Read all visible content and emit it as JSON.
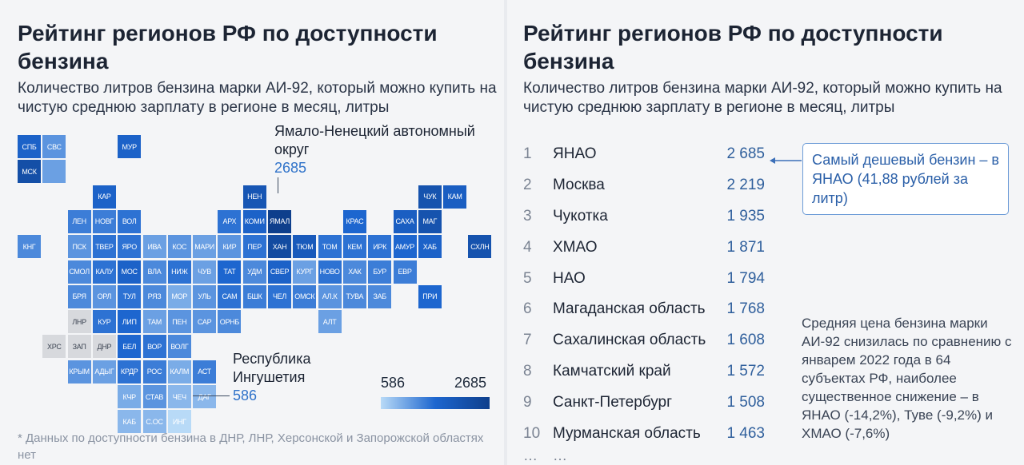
{
  "left": {
    "title": "Рейтинг регионов РФ по доступности бензина",
    "subtitle": "Количество литров бензина марки АИ-92, который можно купить на чистую среднюю зарплату в регионе в месяц, литры",
    "callout_top": {
      "label": "Ямало-Ненецкий автономный округ",
      "value": "2685"
    },
    "callout_bottom": {
      "label": "Республика Ингушетия",
      "value": "586"
    },
    "legend": {
      "min": "586",
      "max": "2685",
      "colors": [
        "#b8daf7",
        "#1d66cf",
        "#0e3f8c"
      ]
    },
    "footnote": "* Данных по доступности бензина в ДНР, ЛНР, Херсонской и Запорожской областях нет"
  },
  "right": {
    "title": "Рейтинг регионов РФ по доступности бензина",
    "subtitle": "Количество литров бензина марки АИ-92, который можно купить на чистую среднюю зарплату в регионе в месяц, литры",
    "ranking": [
      {
        "rank": "1",
        "name": "ЯНАО",
        "value": "2 685"
      },
      {
        "rank": "2",
        "name": "Москва",
        "value": "2 219"
      },
      {
        "rank": "3",
        "name": "Чукотка",
        "value": "1 935"
      },
      {
        "rank": "4",
        "name": "ХМАО",
        "value": "1 871"
      },
      {
        "rank": "5",
        "name": "НАО",
        "value": "1 794"
      },
      {
        "rank": "6",
        "name": "Магаданская область",
        "value": "1 768"
      },
      {
        "rank": "7",
        "name": "Сахалинская область",
        "value": "1 608"
      },
      {
        "rank": "8",
        "name": "Камчатский край",
        "value": "1 572"
      },
      {
        "rank": "9",
        "name": "Санкт-Петербург",
        "value": "1 508"
      },
      {
        "rank": "10",
        "name": "Мурманская область",
        "value": "1 463"
      }
    ],
    "ellipsis": "…",
    "note_box": "Самый дешевый бензин – в ЯНАО (41,88 рублей за литр)",
    "side_note": "Средняя цена бензина марки АИ-92 снизилась по сравнению с январем 2022 года в 64 субъектах РФ, наиболее существенное снижение – в ЯНАО (-14,2%), Туве (-9,2%) и ХМАО (-7,6%)"
  },
  "chart_data": {
    "type": "heatmap",
    "value_range": [
      586,
      2685
    ],
    "no_data_color": "#d7d9dd",
    "tiles": [
      {
        "label": "СПБ",
        "row": 0,
        "col": 0,
        "level": 0.55
      },
      {
        "label": "СВС",
        "row": 0,
        "col": 1,
        "level": 0.3
      },
      {
        "label": "МУР",
        "row": 0,
        "col": 4,
        "level": 0.55
      },
      {
        "label": "МСК",
        "row": 1,
        "col": 0,
        "level": 0.8
      },
      {
        "label": "",
        "row": 1,
        "col": 1,
        "level": 0.25
      },
      {
        "label": "КАР",
        "row": 2,
        "col": 3,
        "level": 0.55
      },
      {
        "label": "НЕН",
        "row": 2,
        "col": 9,
        "level": 0.7
      },
      {
        "label": "ЧУК",
        "row": 2,
        "col": 16,
        "level": 0.75
      },
      {
        "label": "КАМ",
        "row": 2,
        "col": 17,
        "level": 0.6
      },
      {
        "label": "ЛЕН",
        "row": 3,
        "col": 2,
        "level": 0.4
      },
      {
        "label": "НОВГ",
        "row": 3,
        "col": 3,
        "level": 0.4
      },
      {
        "label": "ВОЛ",
        "row": 3,
        "col": 4,
        "level": 0.45
      },
      {
        "label": "АРХ",
        "row": 3,
        "col": 8,
        "level": 0.45
      },
      {
        "label": "КОМИ",
        "row": 3,
        "col": 9,
        "level": 0.55
      },
      {
        "label": "ЯМАЛ",
        "row": 3,
        "col": 10,
        "level": 1.0
      },
      {
        "label": "КРАС",
        "row": 3,
        "col": 13,
        "level": 0.5
      },
      {
        "label": "САХА",
        "row": 3,
        "col": 15,
        "level": 0.6
      },
      {
        "label": "МАГ",
        "row": 3,
        "col": 16,
        "level": 0.75
      },
      {
        "label": "КНГ",
        "row": 4,
        "col": 0,
        "level": 0.35
      },
      {
        "label": "ПСК",
        "row": 4,
        "col": 2,
        "level": 0.3
      },
      {
        "label": "ТВЕР",
        "row": 4,
        "col": 3,
        "level": 0.45
      },
      {
        "label": "ЯРО",
        "row": 4,
        "col": 4,
        "level": 0.45
      },
      {
        "label": "ИВА",
        "row": 4,
        "col": 5,
        "level": 0.25
      },
      {
        "label": "КОС",
        "row": 4,
        "col": 6,
        "level": 0.3
      },
      {
        "label": "МАРИ",
        "row": 4,
        "col": 7,
        "level": 0.25
      },
      {
        "label": "КИР",
        "row": 4,
        "col": 8,
        "level": 0.3
      },
      {
        "label": "ПЕР",
        "row": 4,
        "col": 9,
        "level": 0.45
      },
      {
        "label": "ХАН",
        "row": 4,
        "col": 10,
        "level": 0.85
      },
      {
        "label": "ТЮМ",
        "row": 4,
        "col": 11,
        "level": 0.65
      },
      {
        "label": "ТОМ",
        "row": 4,
        "col": 12,
        "level": 0.45
      },
      {
        "label": "КЕМ",
        "row": 4,
        "col": 13,
        "level": 0.45
      },
      {
        "label": "ИРК",
        "row": 4,
        "col": 14,
        "level": 0.45
      },
      {
        "label": "АМУР",
        "row": 4,
        "col": 15,
        "level": 0.5
      },
      {
        "label": "ХАБ",
        "row": 4,
        "col": 16,
        "level": 0.55
      },
      {
        "label": "СХЛН",
        "row": 4,
        "col": 18,
        "level": 0.75
      },
      {
        "label": "СМОЛ",
        "row": 5,
        "col": 2,
        "level": 0.35
      },
      {
        "label": "КАЛУ",
        "row": 5,
        "col": 3,
        "level": 0.45
      },
      {
        "label": "МОС",
        "row": 5,
        "col": 4,
        "level": 0.55
      },
      {
        "label": "ВЛА",
        "row": 5,
        "col": 5,
        "level": 0.35
      },
      {
        "label": "НИЖ",
        "row": 5,
        "col": 6,
        "level": 0.45
      },
      {
        "label": "ЧУВ",
        "row": 5,
        "col": 7,
        "level": 0.25
      },
      {
        "label": "ТАТ",
        "row": 5,
        "col": 8,
        "level": 0.5
      },
      {
        "label": "УДМ",
        "row": 5,
        "col": 9,
        "level": 0.35
      },
      {
        "label": "СВЕР",
        "row": 5,
        "col": 10,
        "level": 0.55
      },
      {
        "label": "КУРГ",
        "row": 5,
        "col": 11,
        "level": 0.25
      },
      {
        "label": "НОВО",
        "row": 5,
        "col": 12,
        "level": 0.45
      },
      {
        "label": "ХАК",
        "row": 5,
        "col": 13,
        "level": 0.35
      },
      {
        "label": "БУР",
        "row": 5,
        "col": 14,
        "level": 0.4
      },
      {
        "label": "ЕВР",
        "row": 5,
        "col": 15,
        "level": 0.4
      },
      {
        "label": "БРЯ",
        "row": 6,
        "col": 2,
        "level": 0.35
      },
      {
        "label": "ОРЛ",
        "row": 6,
        "col": 3,
        "level": 0.3
      },
      {
        "label": "ТУЛ",
        "row": 6,
        "col": 4,
        "level": 0.45
      },
      {
        "label": "РЯЗ",
        "row": 6,
        "col": 5,
        "level": 0.35
      },
      {
        "label": "МОР",
        "row": 6,
        "col": 6,
        "level": 0.2
      },
      {
        "label": "УЛЬ",
        "row": 6,
        "col": 7,
        "level": 0.3
      },
      {
        "label": "САМ",
        "row": 6,
        "col": 8,
        "level": 0.45
      },
      {
        "label": "БШК",
        "row": 6,
        "col": 9,
        "level": 0.4
      },
      {
        "label": "ЧЕЛ",
        "row": 6,
        "col": 10,
        "level": 0.45
      },
      {
        "label": "ОМСК",
        "row": 6,
        "col": 11,
        "level": 0.4
      },
      {
        "label": "АЛ.К",
        "row": 6,
        "col": 12,
        "level": 0.3
      },
      {
        "label": "ТУВА",
        "row": 6,
        "col": 13,
        "level": 0.35
      },
      {
        "label": "ЗАБ",
        "row": 6,
        "col": 14,
        "level": 0.35
      },
      {
        "label": "ПРИ",
        "row": 6,
        "col": 16,
        "level": 0.5
      },
      {
        "label": "ЛНР",
        "row": 7,
        "col": 2,
        "nodata": true
      },
      {
        "label": "КУР",
        "row": 7,
        "col": 3,
        "level": 0.45
      },
      {
        "label": "ЛИП",
        "row": 7,
        "col": 4,
        "level": 0.5
      },
      {
        "label": "ТАМ",
        "row": 7,
        "col": 5,
        "level": 0.25
      },
      {
        "label": "ПЕН",
        "row": 7,
        "col": 6,
        "level": 0.3
      },
      {
        "label": "САР",
        "row": 7,
        "col": 7,
        "level": 0.3
      },
      {
        "label": "ОРНБ",
        "row": 7,
        "col": 8,
        "level": 0.35
      },
      {
        "label": "АЛТ",
        "row": 7,
        "col": 12,
        "level": 0.25
      },
      {
        "label": "ХРС",
        "row": 8,
        "col": 1,
        "nodata": true
      },
      {
        "label": "ЗАП",
        "row": 8,
        "col": 2,
        "nodata": true
      },
      {
        "label": "ДНР",
        "row": 8,
        "col": 3,
        "nodata": true
      },
      {
        "label": "БЕЛ",
        "row": 8,
        "col": 4,
        "level": 0.5
      },
      {
        "label": "ВОР",
        "row": 8,
        "col": 5,
        "level": 0.45
      },
      {
        "label": "ВОЛГ",
        "row": 8,
        "col": 6,
        "level": 0.35
      },
      {
        "label": "КРЫМ",
        "row": 9,
        "col": 2,
        "level": 0.3
      },
      {
        "label": "АДЫГ",
        "row": 9,
        "col": 3,
        "level": 0.25
      },
      {
        "label": "КРДР",
        "row": 9,
        "col": 4,
        "level": 0.45
      },
      {
        "label": "РОС",
        "row": 9,
        "col": 5,
        "level": 0.4
      },
      {
        "label": "КАЛМ",
        "row": 9,
        "col": 6,
        "level": 0.2
      },
      {
        "label": "АСТ",
        "row": 9,
        "col": 7,
        "level": 0.4
      },
      {
        "label": "КЧР",
        "row": 10,
        "col": 4,
        "level": 0.2
      },
      {
        "label": "СТАВ",
        "row": 10,
        "col": 5,
        "level": 0.3
      },
      {
        "label": "ЧЕЧ",
        "row": 10,
        "col": 6,
        "level": 0.15
      },
      {
        "label": "ДАГ",
        "row": 10,
        "col": 7,
        "level": 0.15
      },
      {
        "label": "КАБ",
        "row": 11,
        "col": 4,
        "level": 0.15
      },
      {
        "label": "С.ОС",
        "row": 11,
        "col": 5,
        "level": 0.15
      },
      {
        "label": "ИНГ",
        "row": 11,
        "col": 6,
        "level": 0.0
      }
    ]
  }
}
